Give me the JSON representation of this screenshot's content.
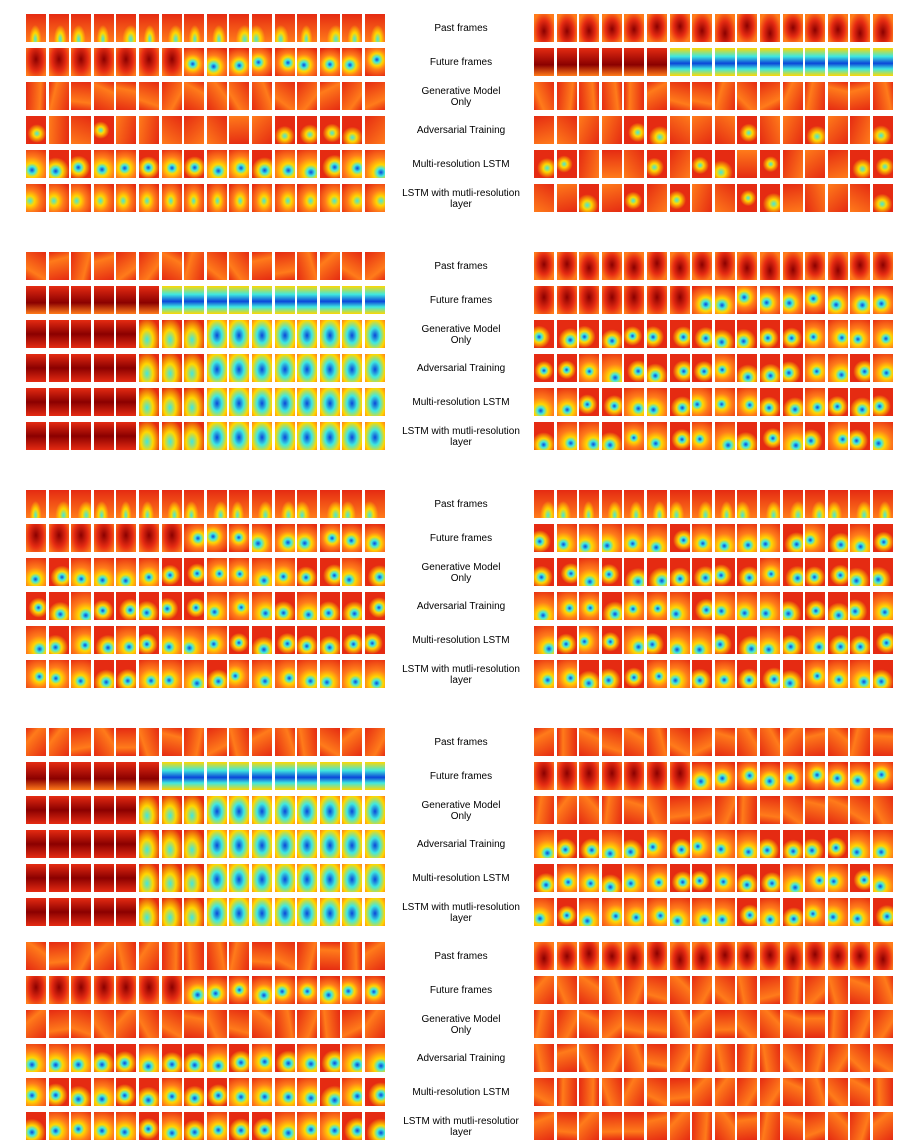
{
  "figure": {
    "panels": [
      {
        "row_labels": [
          "Past frames",
          "Future frames",
          "Generative Model\nOnly",
          "Adversarial Training",
          "Multi-resolution LSTM",
          "LSTM with mutli-resolution\nlayer"
        ],
        "left_profile": [
          "past_edge",
          "future_mixed",
          "plain",
          "plain_spot",
          "rolling_spot",
          "drift"
        ],
        "right_profile": [
          "past_dark",
          "future_blue_band",
          "plain",
          "plain_spot",
          "plain_spot",
          "plain_spot"
        ]
      },
      {
        "row_labels": [
          "Past frames",
          "Future frames",
          "Generative Model\nOnly",
          "Adversarial Training",
          "Multi-resolution LSTM",
          "LSTM with mutli-resolution\nlayer"
        ],
        "left_profile": [
          "plain",
          "future_blue_band",
          "fade_to_blue",
          "fade_to_blue",
          "fade_to_blue",
          "fade_to_blue"
        ],
        "right_profile": [
          "past_dark",
          "future_mixed",
          "spot",
          "spot",
          "spot",
          "spot"
        ]
      },
      {
        "row_labels": [
          "Past frames",
          "Future frames",
          "Generative Model\nOnly",
          "Adversarial Training",
          "Multi-resolution LSTM",
          "LSTM with mutli-resolution\nlayer"
        ],
        "left_profile": [
          "past_edge",
          "future_mixed",
          "spot",
          "spot",
          "spot",
          "spot"
        ],
        "right_profile": [
          "past_edge",
          "spot",
          "spot",
          "spot",
          "spot",
          "spot"
        ]
      },
      {
        "row_labels": [
          "Past frames",
          "Future frames",
          "Generative Model\nOnly",
          "Adversarial Training",
          "Multi-resolution LSTM",
          "LSTM with mutli-resolution\nlayer"
        ],
        "left_profile": [
          "plain",
          "future_blue_band",
          "fade_to_blue",
          "fade_to_blue",
          "fade_to_blue",
          "fade_to_blue"
        ],
        "right_profile": [
          "plain",
          "future_mixed",
          "plain",
          "spot",
          "spot",
          "spot"
        ]
      },
      {
        "row_labels": [
          "Past frames",
          "Future frames",
          "Generative Model\nOnly",
          "Adversarial Training",
          "Multi-resolution LSTM",
          "LSTM with mutli-resolutior\nlayer"
        ],
        "left_profile": [
          "plain",
          "future_mixed",
          "plain",
          "rolling_spot",
          "rolling_spot",
          "rolling_spot"
        ],
        "right_profile": [
          "past_dark",
          "plain",
          "plain",
          "plain",
          "plain",
          "plain"
        ]
      }
    ],
    "frames_per_row": 16,
    "colors": {
      "dark_red": "#8b0000",
      "red": "#e52b12",
      "orange": "#ff7b1a",
      "yellow": "#ffd700",
      "cyan": "#3fe8e0",
      "blue": "#0b46d9"
    }
  }
}
